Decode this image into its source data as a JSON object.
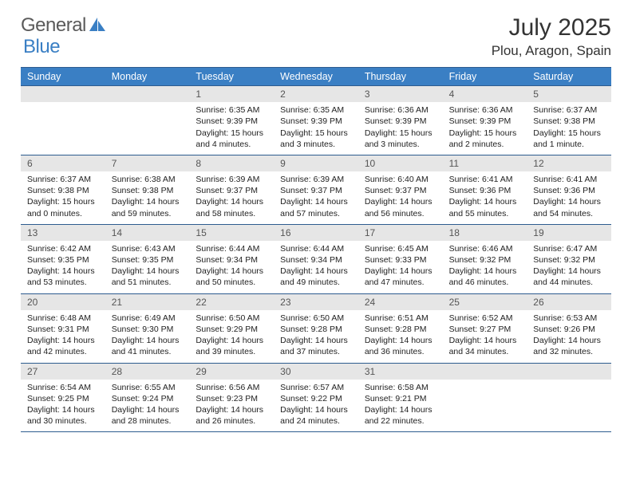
{
  "logo": {
    "text1": "General",
    "text2": "Blue"
  },
  "title": "July 2025",
  "location": "Plou, Aragon, Spain",
  "colors": {
    "header_bg": "#3a7fc4",
    "header_border": "#2d5c8f",
    "daynum_bg": "#e6e6e6",
    "text": "#222222",
    "logo_gray": "#5a5a5a",
    "logo_blue": "#3a7fc4"
  },
  "weekdays": [
    "Sunday",
    "Monday",
    "Tuesday",
    "Wednesday",
    "Thursday",
    "Friday",
    "Saturday"
  ],
  "leading_blanks": 2,
  "days": [
    {
      "n": 1,
      "sunrise": "6:35 AM",
      "sunset": "9:39 PM",
      "daylight": "15 hours and 4 minutes."
    },
    {
      "n": 2,
      "sunrise": "6:35 AM",
      "sunset": "9:39 PM",
      "daylight": "15 hours and 3 minutes."
    },
    {
      "n": 3,
      "sunrise": "6:36 AM",
      "sunset": "9:39 PM",
      "daylight": "15 hours and 3 minutes."
    },
    {
      "n": 4,
      "sunrise": "6:36 AM",
      "sunset": "9:39 PM",
      "daylight": "15 hours and 2 minutes."
    },
    {
      "n": 5,
      "sunrise": "6:37 AM",
      "sunset": "9:38 PM",
      "daylight": "15 hours and 1 minute."
    },
    {
      "n": 6,
      "sunrise": "6:37 AM",
      "sunset": "9:38 PM",
      "daylight": "15 hours and 0 minutes."
    },
    {
      "n": 7,
      "sunrise": "6:38 AM",
      "sunset": "9:38 PM",
      "daylight": "14 hours and 59 minutes."
    },
    {
      "n": 8,
      "sunrise": "6:39 AM",
      "sunset": "9:37 PM",
      "daylight": "14 hours and 58 minutes."
    },
    {
      "n": 9,
      "sunrise": "6:39 AM",
      "sunset": "9:37 PM",
      "daylight": "14 hours and 57 minutes."
    },
    {
      "n": 10,
      "sunrise": "6:40 AM",
      "sunset": "9:37 PM",
      "daylight": "14 hours and 56 minutes."
    },
    {
      "n": 11,
      "sunrise": "6:41 AM",
      "sunset": "9:36 PM",
      "daylight": "14 hours and 55 minutes."
    },
    {
      "n": 12,
      "sunrise": "6:41 AM",
      "sunset": "9:36 PM",
      "daylight": "14 hours and 54 minutes."
    },
    {
      "n": 13,
      "sunrise": "6:42 AM",
      "sunset": "9:35 PM",
      "daylight": "14 hours and 53 minutes."
    },
    {
      "n": 14,
      "sunrise": "6:43 AM",
      "sunset": "9:35 PM",
      "daylight": "14 hours and 51 minutes."
    },
    {
      "n": 15,
      "sunrise": "6:44 AM",
      "sunset": "9:34 PM",
      "daylight": "14 hours and 50 minutes."
    },
    {
      "n": 16,
      "sunrise": "6:44 AM",
      "sunset": "9:34 PM",
      "daylight": "14 hours and 49 minutes."
    },
    {
      "n": 17,
      "sunrise": "6:45 AM",
      "sunset": "9:33 PM",
      "daylight": "14 hours and 47 minutes."
    },
    {
      "n": 18,
      "sunrise": "6:46 AM",
      "sunset": "9:32 PM",
      "daylight": "14 hours and 46 minutes."
    },
    {
      "n": 19,
      "sunrise": "6:47 AM",
      "sunset": "9:32 PM",
      "daylight": "14 hours and 44 minutes."
    },
    {
      "n": 20,
      "sunrise": "6:48 AM",
      "sunset": "9:31 PM",
      "daylight": "14 hours and 42 minutes."
    },
    {
      "n": 21,
      "sunrise": "6:49 AM",
      "sunset": "9:30 PM",
      "daylight": "14 hours and 41 minutes."
    },
    {
      "n": 22,
      "sunrise": "6:50 AM",
      "sunset": "9:29 PM",
      "daylight": "14 hours and 39 minutes."
    },
    {
      "n": 23,
      "sunrise": "6:50 AM",
      "sunset": "9:28 PM",
      "daylight": "14 hours and 37 minutes."
    },
    {
      "n": 24,
      "sunrise": "6:51 AM",
      "sunset": "9:28 PM",
      "daylight": "14 hours and 36 minutes."
    },
    {
      "n": 25,
      "sunrise": "6:52 AM",
      "sunset": "9:27 PM",
      "daylight": "14 hours and 34 minutes."
    },
    {
      "n": 26,
      "sunrise": "6:53 AM",
      "sunset": "9:26 PM",
      "daylight": "14 hours and 32 minutes."
    },
    {
      "n": 27,
      "sunrise": "6:54 AM",
      "sunset": "9:25 PM",
      "daylight": "14 hours and 30 minutes."
    },
    {
      "n": 28,
      "sunrise": "6:55 AM",
      "sunset": "9:24 PM",
      "daylight": "14 hours and 28 minutes."
    },
    {
      "n": 29,
      "sunrise": "6:56 AM",
      "sunset": "9:23 PM",
      "daylight": "14 hours and 26 minutes."
    },
    {
      "n": 30,
      "sunrise": "6:57 AM",
      "sunset": "9:22 PM",
      "daylight": "14 hours and 24 minutes."
    },
    {
      "n": 31,
      "sunrise": "6:58 AM",
      "sunset": "9:21 PM",
      "daylight": "14 hours and 22 minutes."
    }
  ],
  "labels": {
    "sunrise": "Sunrise:",
    "sunset": "Sunset:",
    "daylight": "Daylight:"
  }
}
